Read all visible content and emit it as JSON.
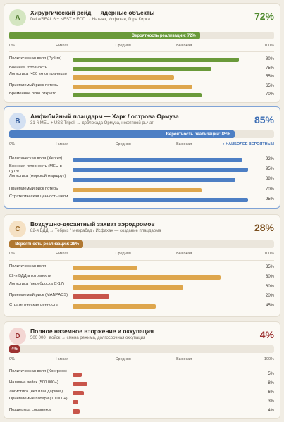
{
  "scale_labels": [
    "0%",
    "Низкая",
    "Средняя",
    "Высокая",
    "100%"
  ],
  "colors": {
    "green": "#6a9a3a",
    "blue": "#4d7fc4",
    "orange": "#dea64c",
    "red": "#c8554a",
    "brown": "#b07832",
    "darkred": "#9c3131"
  },
  "scenarios": [
    {
      "letter": "A",
      "title": "Хирургический рейд — ядерные объекты",
      "subtitle": "Delta/SEAL 6 + NEST + EOD → Натанз, Исфахан, Гора Кирка",
      "pct": "72%",
      "probability": 0.72,
      "prob_label": "Вероятность реализации: 72%",
      "color_key": "green",
      "factors": [
        {
          "label": "Политическая воля (Рубио)",
          "value": "90%",
          "level": 0.9,
          "color": "green"
        },
        {
          "label": "Военная готовность",
          "value": "75%",
          "level": 0.75,
          "color": "green"
        },
        {
          "label": "Логистика (450 км от границы)",
          "value": "55%",
          "level": 0.55,
          "color": "orange"
        },
        {
          "label": "Приемлемый риск потерь",
          "value": "65%",
          "level": 0.65,
          "color": "orange"
        },
        {
          "label": "Временное окно открыто",
          "value": "70%",
          "level": 0.7,
          "color": "green"
        }
      ]
    },
    {
      "letter": "B",
      "title": "Амфибийный плацдарм — Харк / острова Ормуза",
      "subtitle": "31-й MEU + USS Tripoli → деблокада Ормуза, нефтяной рычаг",
      "pct": "85%",
      "probability": 0.85,
      "prob_label": "Вероятность реализации: 85%",
      "color_key": "blue",
      "tag": "● НАИБОЛЕЕ ВЕРОЯТНЫЙ",
      "factors": [
        {
          "label": "Политическая воля (Хегсет)",
          "value": "92%",
          "level": 0.92,
          "color": "blue"
        },
        {
          "label": "Военная готовность (MEU в пути)",
          "value": "95%",
          "level": 0.95,
          "color": "blue"
        },
        {
          "label": "Логистика (морской маршрут)",
          "value": "88%",
          "level": 0.88,
          "color": "blue"
        },
        {
          "label": "Приемлемый риск потерь",
          "value": "70%",
          "level": 0.7,
          "color": "orange"
        },
        {
          "label": "Стратегическая ценность цели",
          "value": "95%",
          "level": 0.95,
          "color": "blue"
        }
      ]
    },
    {
      "letter": "C",
      "title": "Воздушно-десантный захват аэродромов",
      "subtitle": "82-я ВДД → Тебриз / Мехрабад / Исфахан — создание плацдарма",
      "pct": "28%",
      "probability": 0.28,
      "prob_label": "Вероятность реализации: 28%",
      "color_key": "brown",
      "factors": [
        {
          "label": "Политическая воля",
          "value": "35%",
          "level": 0.35,
          "color": "orange"
        },
        {
          "label": "82-я ВДД в готовности",
          "value": "80%",
          "level": 0.8,
          "color": "orange"
        },
        {
          "label": "Логистика (переброска C-17)",
          "value": "60%",
          "level": 0.6,
          "color": "orange"
        },
        {
          "label": "Приемлемый риск (MANPADS)",
          "value": "20%",
          "level": 0.2,
          "color": "red"
        },
        {
          "label": "Стратегическая ценность",
          "value": "45%",
          "level": 0.45,
          "color": "orange"
        }
      ]
    },
    {
      "letter": "D",
      "title": "Полное наземное вторжение и оккупация",
      "subtitle": "500 000+ войск → смена режима, долгосрочная оккупация",
      "pct": "4%",
      "probability": 0.04,
      "prob_label": "4%",
      "color_key": "darkred",
      "factors": [
        {
          "label": "Политическая воля (Конгресс)",
          "value": "5%",
          "level": 0.05,
          "color": "red"
        },
        {
          "label": "Наличие войск (500 000+)",
          "value": "8%",
          "level": 0.08,
          "color": "red"
        },
        {
          "label": "Логистика (нет плацдармов)",
          "value": "6%",
          "level": 0.06,
          "color": "red"
        },
        {
          "label": "Приемлемые потери (10 000+)",
          "value": "3%",
          "level": 0.03,
          "color": "red"
        },
        {
          "label": "Поддержка союзников",
          "value": "4%",
          "level": 0.04,
          "color": "red"
        }
      ]
    }
  ]
}
